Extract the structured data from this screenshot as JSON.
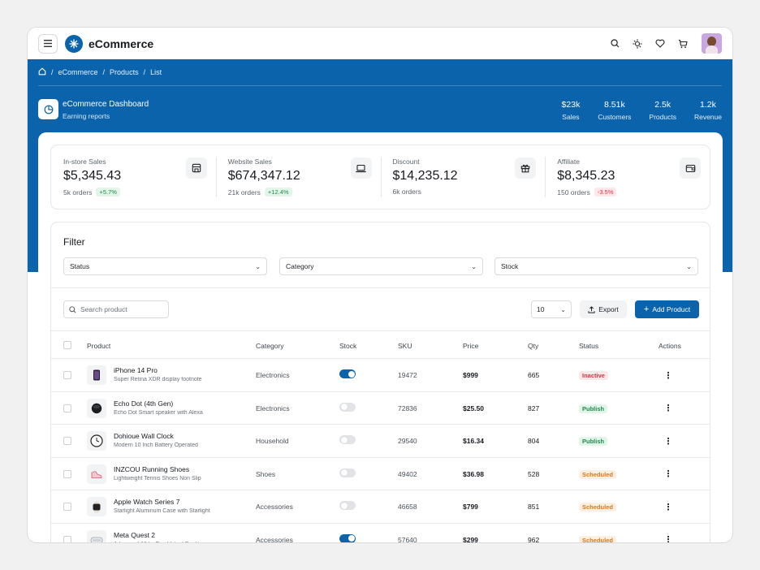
{
  "app": {
    "title": "eCommerce"
  },
  "breadcrumb": [
    "eCommerce",
    "Products",
    "List"
  ],
  "dashboard": {
    "title": "eCommerce Dashboard",
    "subtitle": "Earning reports"
  },
  "hero_stats": [
    {
      "value": "$23k",
      "label": "Sales"
    },
    {
      "value": "8.51k",
      "label": "Customers"
    },
    {
      "value": "2.5k",
      "label": "Products"
    },
    {
      "value": "1.2k",
      "label": "Revenue"
    }
  ],
  "stats": [
    {
      "label": "In-store Sales",
      "value": "$5,345.43",
      "orders": "5k orders",
      "change": "+5.7%",
      "icon": "storefront-icon",
      "trend": "up"
    },
    {
      "label": "Website Sales",
      "value": "$674,347.12",
      "orders": "21k orders",
      "change": "+12.4%",
      "icon": "laptop-icon",
      "trend": "up"
    },
    {
      "label": "Discount",
      "value": "$14,235.12",
      "orders": "6k orders",
      "change": "",
      "icon": "gift-icon",
      "trend": "none"
    },
    {
      "label": "Affiliate",
      "value": "$8,345.23",
      "orders": "150 orders",
      "change": "-3.5%",
      "icon": "wallet-icon",
      "trend": "down"
    }
  ],
  "filter": {
    "title": "Filter",
    "selects": [
      "Status",
      "Category",
      "Stock"
    ]
  },
  "toolbar": {
    "search_placeholder": "Search product",
    "page_size": "10",
    "export_label": "Export",
    "add_label": "Add Product"
  },
  "table": {
    "headers": [
      "Product",
      "Category",
      "Stock",
      "SKU",
      "Price",
      "Qty",
      "Status",
      "Actions"
    ],
    "rows": [
      {
        "name": "iPhone 14 Pro",
        "desc": "Super Retina XDR display footnote",
        "category": "Electronics",
        "stock": true,
        "sku": "19472",
        "price": "$999",
        "qty": "665",
        "status": "Inactive",
        "thumb": "phone-thumb"
      },
      {
        "name": "Echo Dot (4th Gen)",
        "desc": "Echo Dot Smart speaker with Alexa",
        "category": "Electronics",
        "stock": false,
        "sku": "72836",
        "price": "$25.50",
        "qty": "827",
        "status": "Publish",
        "thumb": "speaker-thumb"
      },
      {
        "name": "Dohioue Wall Clock",
        "desc": "Modern 10 Inch Battery Operated",
        "category": "Household",
        "stock": false,
        "sku": "29540",
        "price": "$16.34",
        "qty": "804",
        "status": "Publish",
        "thumb": "clock-thumb"
      },
      {
        "name": "INZCOU Running Shoes",
        "desc": "Lightweight Tennis Shoes Non Slip",
        "category": "Shoes",
        "stock": false,
        "sku": "49402",
        "price": "$36.98",
        "qty": "528",
        "status": "Scheduled",
        "thumb": "shoe-thumb"
      },
      {
        "name": "Apple Watch Series 7",
        "desc": "Starlight Aluminum Case with Starlight",
        "category": "Accessories",
        "stock": false,
        "sku": "46658",
        "price": "$799",
        "qty": "851",
        "status": "Scheduled",
        "thumb": "watch-thumb"
      },
      {
        "name": "Meta Quest 2",
        "desc": "Advanced All-In-One Virtual Reality",
        "category": "Accessories",
        "stock": true,
        "sku": "57640",
        "price": "$299",
        "qty": "962",
        "status": "Scheduled",
        "thumb": "vr-thumb"
      }
    ]
  },
  "colors": {
    "brand": "#0b63ac",
    "success": "#1f8a4c",
    "danger": "#d0353f",
    "warning": "#d9781f"
  }
}
